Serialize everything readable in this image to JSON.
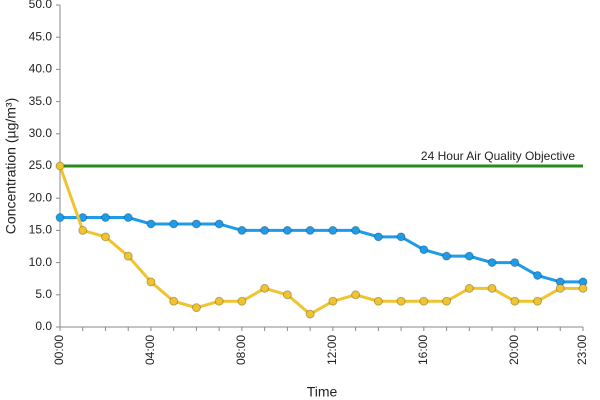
{
  "chart_data": {
    "type": "line",
    "x_label": "Time",
    "y_label": "Concentration (µg/m³)",
    "categories": [
      "00:00",
      null,
      null,
      null,
      "04:00",
      null,
      null,
      null,
      "08:00",
      null,
      null,
      null,
      "12:00",
      null,
      null,
      null,
      "16:00",
      null,
      null,
      null,
      "20:00",
      null,
      null,
      "23:00"
    ],
    "series": [
      {
        "color": "#1e9be9",
        "marker": true,
        "values": [
          17,
          17,
          17,
          17,
          16,
          16,
          16,
          16,
          15,
          15,
          15,
          15,
          15,
          15,
          14,
          14,
          12,
          11,
          11,
          10,
          10,
          8,
          7,
          7
        ]
      },
      {
        "color": "#f0c330",
        "marker": true,
        "values": [
          25,
          15,
          14,
          11,
          7,
          4,
          3,
          4,
          4,
          6,
          5,
          2,
          4,
          5,
          4,
          4,
          4,
          4,
          6,
          6,
          4,
          4,
          6,
          6
        ]
      },
      {
        "name": "24 Hour Air Quality Objective",
        "color": "#2a8a1e",
        "marker": false,
        "values": [
          25,
          25,
          25,
          25,
          25,
          25,
          25,
          25,
          25,
          25,
          25,
          25,
          25,
          25,
          25,
          25,
          25,
          25,
          25,
          25,
          25,
          25,
          25,
          25
        ]
      }
    ],
    "ylim": [
      0,
      50
    ],
    "yticks": [
      {
        "value": 0,
        "label": "0.0"
      },
      {
        "value": 5,
        "label": "5.0"
      },
      {
        "value": 10,
        "label": "10.0"
      },
      {
        "value": 15,
        "label": "15.0"
      },
      {
        "value": 20,
        "label": "20.0"
      },
      {
        "value": 25,
        "label": "25.0"
      },
      {
        "value": 30,
        "label": "30.0"
      },
      {
        "value": 35,
        "label": "35.0"
      },
      {
        "value": 40,
        "label": "40.0"
      },
      {
        "value": 45,
        "label": "45.0"
      },
      {
        "value": 50,
        "label": "50.0"
      }
    ]
  }
}
